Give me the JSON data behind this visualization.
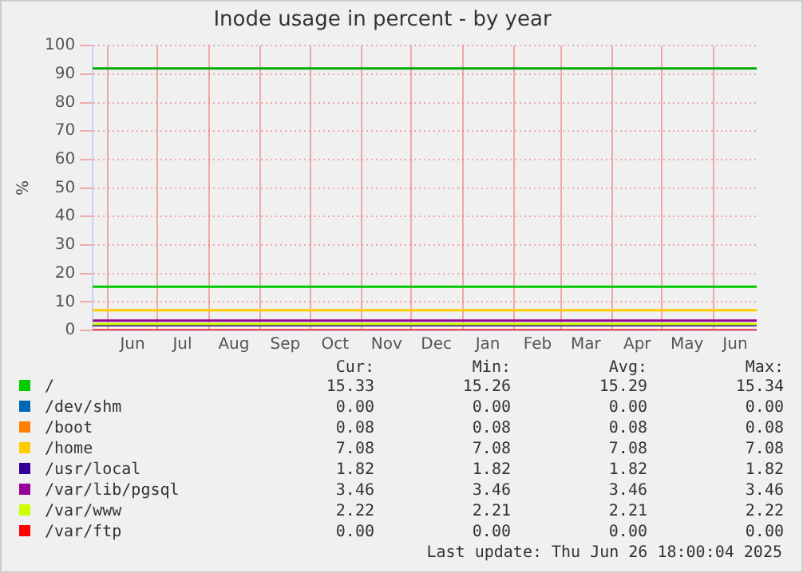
{
  "chart_data": {
    "type": "line",
    "title": "Inode usage in percent - by year",
    "ylabel": "%",
    "x": [
      "2024-05-23",
      "2025-06-27"
    ],
    "xlim": [
      "2024-05-23",
      "2025-06-27"
    ],
    "xticks": [
      {
        "value": "2024-06-01",
        "label": null
      },
      {
        "value": "2024-06-16",
        "label": "Jun"
      },
      {
        "value": "2024-07-01",
        "label": null
      },
      {
        "value": "2024-07-16",
        "label": "Jul"
      },
      {
        "value": "2024-08-01",
        "label": null
      },
      {
        "value": "2024-08-16",
        "label": "Aug"
      },
      {
        "value": "2024-09-01",
        "label": null
      },
      {
        "value": "2024-09-16",
        "label": "Sep"
      },
      {
        "value": "2024-10-01",
        "label": null
      },
      {
        "value": "2024-10-16",
        "label": "Oct"
      },
      {
        "value": "2024-11-01",
        "label": null
      },
      {
        "value": "2024-11-16",
        "label": "Nov"
      },
      {
        "value": "2024-12-01",
        "label": null
      },
      {
        "value": "2024-12-16",
        "label": "Dec"
      },
      {
        "value": "2025-01-01",
        "label": null
      },
      {
        "value": "2025-01-16",
        "label": "Jan"
      },
      {
        "value": "2025-02-01",
        "label": null
      },
      {
        "value": "2025-02-15",
        "label": "Feb"
      },
      {
        "value": "2025-03-01",
        "label": null
      },
      {
        "value": "2025-03-16",
        "label": "Mar"
      },
      {
        "value": "2025-04-01",
        "label": null
      },
      {
        "value": "2025-04-16",
        "label": "Apr"
      },
      {
        "value": "2025-05-01",
        "label": null
      },
      {
        "value": "2025-05-16",
        "label": "May"
      },
      {
        "value": "2025-06-01",
        "label": null
      },
      {
        "value": "2025-06-14",
        "label": "Jun"
      }
    ],
    "ylim": [
      0,
      100
    ],
    "yticks": [
      0,
      10,
      20,
      30,
      40,
      50,
      60,
      70,
      80,
      90,
      100
    ],
    "grid": true,
    "legend": "bottom",
    "marker": "none",
    "line_style": "solid",
    "series": [
      {
        "name": "/",
        "color": "#00cc00",
        "values": [
          15.33,
          15.33
        ]
      },
      {
        "name": "/dev/shm",
        "color": "#0066b3",
        "values": [
          null,
          null
        ]
      },
      {
        "name": "/boot",
        "color": "#ff8000",
        "values": [
          null,
          null
        ]
      },
      {
        "name": "/home",
        "color": "#ffcc00",
        "values": [
          7.08,
          7.08
        ]
      },
      {
        "name": "/usr/local",
        "color": "#330099",
        "values": [
          1.82,
          1.82
        ]
      },
      {
        "name": "/var/lib/pgsql",
        "color": "#990099",
        "values": [
          3.46,
          3.46
        ]
      },
      {
        "name": "/var/www",
        "color": "#ccff00",
        "values": [
          2.22,
          2.22
        ]
      },
      {
        "name": "/var/ftp",
        "color": "#ff0000",
        "values": [
          0,
          0
        ]
      }
    ],
    "ref_lines": [
      {
        "axis": "y",
        "value": 92,
        "color": "#00aa00"
      }
    ],
    "annotations": [
      "Cur:",
      "Min:",
      "Avg:",
      "Max:",
      "15.33",
      "15.26",
      "15.29",
      "15.34",
      "0.00",
      "0.00",
      "0.00",
      "0.00",
      "0.08",
      "0.08",
      "0.08",
      "0.08",
      "7.08",
      "7.08",
      "7.08",
      "7.08",
      "1.82",
      "1.82",
      "1.82",
      "1.82",
      "3.46",
      "3.46",
      "3.46",
      "3.46",
      "2.22",
      "2.21",
      "2.21",
      "2.22",
      "0.00",
      "0.00",
      "0.00",
      "0.00",
      "Last update: Thu Jun 26 18:00:04 2025"
    ]
  }
}
